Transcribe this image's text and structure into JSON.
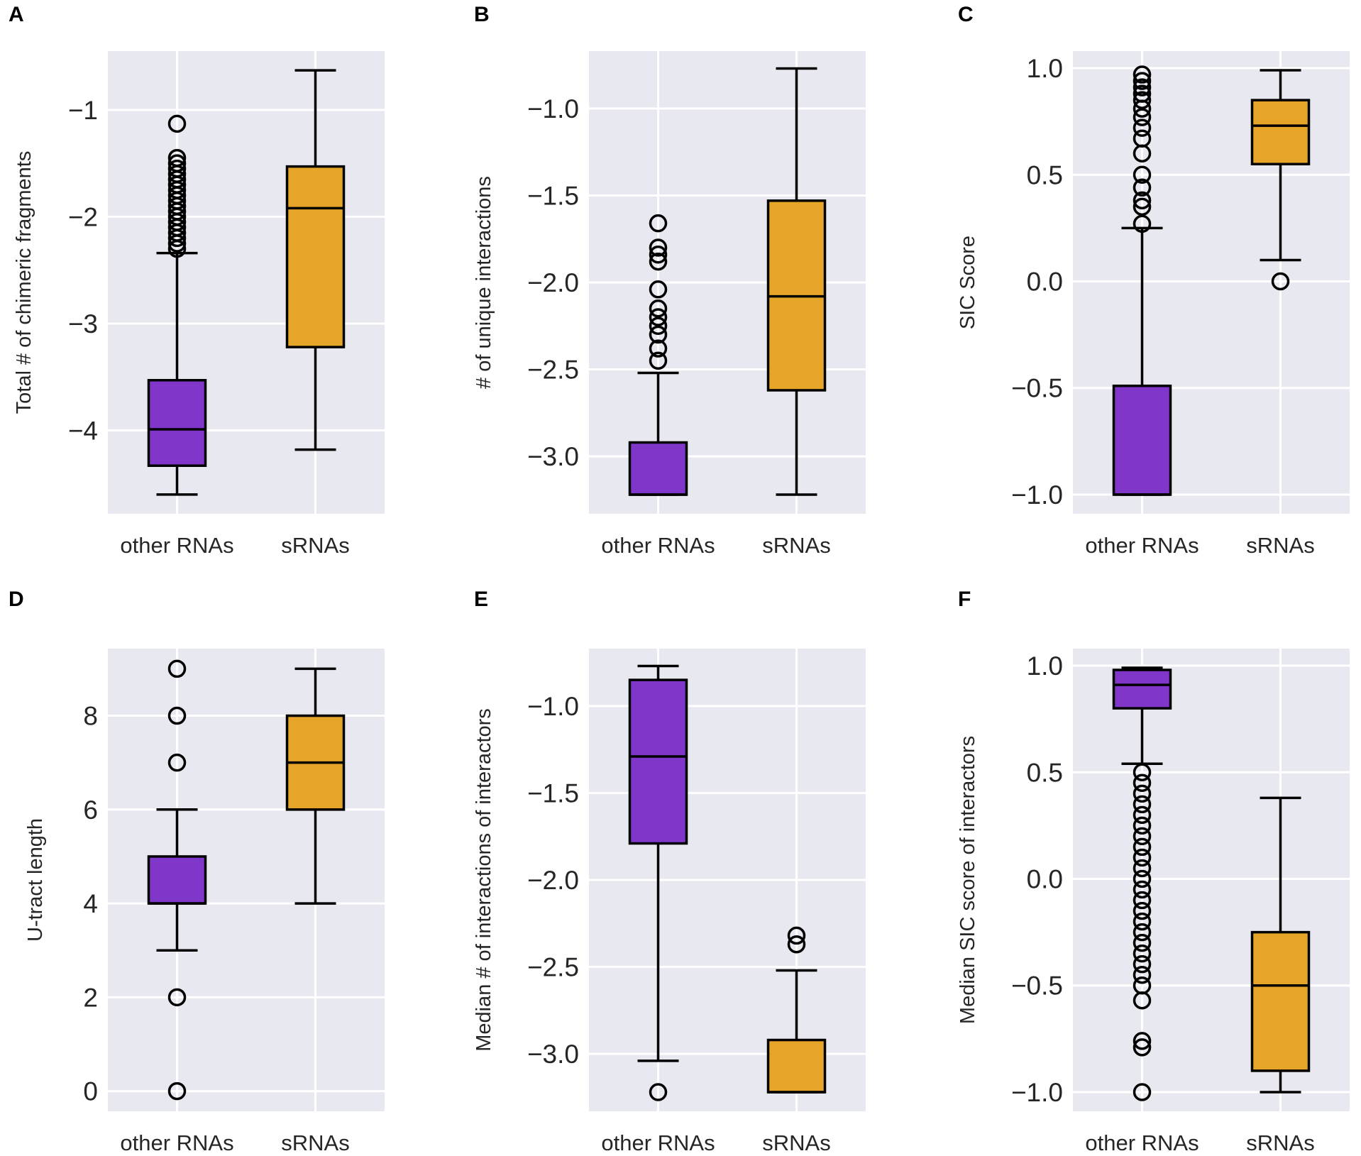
{
  "colors": {
    "other": "#7f36c9",
    "srna": "#e6a428",
    "background": "#e8e8f0"
  },
  "chart_data": [
    {
      "panel": "A",
      "type": "box",
      "ylabel": "Total # of chimeric fragments",
      "categories": [
        "other RNAs",
        "sRNAs"
      ],
      "ylim": [
        -4.78,
        -0.45
      ],
      "yticks": [
        -4,
        -3,
        -2,
        -1
      ],
      "ytick_labels": [
        "−4",
        "−3",
        "−2",
        "−1"
      ],
      "boxes": [
        {
          "q1": -4.33,
          "median": -3.99,
          "q3": -3.53,
          "whislo": -4.6,
          "whishi": -2.34,
          "fliers": [
            -2.3,
            -2.25,
            -2.2,
            -2.15,
            -2.1,
            -2.05,
            -2.0,
            -1.95,
            -1.9,
            -1.85,
            -1.8,
            -1.75,
            -1.7,
            -1.65,
            -1.6,
            -1.55,
            -1.5,
            -1.45,
            -1.13
          ]
        },
        {
          "q1": -3.22,
          "median": -1.92,
          "q3": -1.53,
          "whislo": -4.18,
          "whishi": -0.63,
          "fliers": []
        }
      ]
    },
    {
      "panel": "B",
      "type": "box",
      "ylabel": "# of unique interactions",
      "categories": [
        "other RNAs",
        "sRNAs"
      ],
      "ylim": [
        -3.33,
        -0.67
      ],
      "yticks": [
        -3.0,
        -2.5,
        -2.0,
        -1.5,
        -1.0
      ],
      "ytick_labels": [
        "−3.0",
        "−2.5",
        "−2.0",
        "−1.5",
        "−1.0"
      ],
      "boxes": [
        {
          "q1": -3.22,
          "median": -3.22,
          "q3": -2.92,
          "whislo": -3.22,
          "whishi": -2.52,
          "fliers": [
            -2.45,
            -2.38,
            -2.3,
            -2.25,
            -2.2,
            -2.15,
            -2.04,
            -1.88,
            -1.84,
            -1.8,
            -1.66
          ]
        },
        {
          "q1": -2.62,
          "median": -2.08,
          "q3": -1.53,
          "whislo": -3.22,
          "whishi": -0.77,
          "fliers": []
        }
      ]
    },
    {
      "panel": "C",
      "type": "box",
      "ylabel": "SIC Score",
      "categories": [
        "other RNAs",
        "sRNAs"
      ],
      "ylim": [
        -1.09,
        1.08
      ],
      "yticks": [
        -1.0,
        -0.5,
        0.0,
        0.5,
        1.0
      ],
      "ytick_labels": [
        "−1.0",
        "−0.5",
        "0.0",
        "0.5",
        "1.0"
      ],
      "boxes": [
        {
          "q1": -1.0,
          "median": -1.0,
          "q3": -0.49,
          "whislo": -1.0,
          "whishi": 0.25,
          "fliers": [
            0.27,
            0.35,
            0.38,
            0.44,
            0.5,
            0.6,
            0.67,
            0.72,
            0.77,
            0.81,
            0.85,
            0.88,
            0.91,
            0.94,
            0.97
          ]
        },
        {
          "q1": 0.55,
          "median": 0.73,
          "q3": 0.85,
          "whislo": 0.1,
          "whishi": 0.99,
          "fliers": [
            0.0
          ]
        }
      ]
    },
    {
      "panel": "D",
      "type": "box",
      "ylabel": "U-tract length",
      "categories": [
        "other RNAs",
        "sRNAs"
      ],
      "ylim": [
        -0.43,
        9.43
      ],
      "yticks": [
        0,
        2,
        4,
        6,
        8
      ],
      "ytick_labels": [
        "0",
        "2",
        "4",
        "6",
        "8"
      ],
      "boxes": [
        {
          "q1": 4,
          "median": 4,
          "q3": 5,
          "whislo": 3,
          "whishi": 6,
          "fliers": [
            0,
            2,
            7,
            8,
            9
          ]
        },
        {
          "q1": 6,
          "median": 7,
          "q3": 8,
          "whislo": 4,
          "whishi": 9,
          "fliers": []
        }
      ]
    },
    {
      "panel": "E",
      "type": "box",
      "ylabel": "Median # of interactions of interactors",
      "categories": [
        "other RNAs",
        "sRNAs"
      ],
      "ylim": [
        -3.33,
        -0.67
      ],
      "yticks": [
        -3.0,
        -2.5,
        -2.0,
        -1.5,
        -1.0
      ],
      "ytick_labels": [
        "−3.0",
        "−2.5",
        "−2.0",
        "−1.5",
        "−1.0"
      ],
      "boxes": [
        {
          "q1": -1.79,
          "median": -1.29,
          "q3": -0.85,
          "whislo": -3.04,
          "whishi": -0.77,
          "fliers": [
            -3.22
          ]
        },
        {
          "q1": -3.22,
          "median": -3.22,
          "q3": -2.92,
          "whislo": -3.22,
          "whishi": -2.52,
          "fliers": [
            -2.37,
            -2.32
          ]
        }
      ]
    },
    {
      "panel": "F",
      "type": "box",
      "ylabel": "Median SIC score of interactors",
      "categories": [
        "other RNAs",
        "sRNAs"
      ],
      "ylim": [
        -1.09,
        1.08
      ],
      "yticks": [
        -1.0,
        -0.5,
        0.0,
        0.5,
        1.0
      ],
      "ytick_labels": [
        "−1.0",
        "−0.5",
        "0.0",
        "0.5",
        "1.0"
      ],
      "boxes": [
        {
          "q1": 0.8,
          "median": 0.91,
          "q3": 0.98,
          "whislo": 0.54,
          "whishi": 0.99,
          "fliers": [
            -1.0,
            -0.79,
            -0.76,
            -0.57,
            -0.5,
            -0.45,
            -0.4,
            -0.35,
            -0.3,
            -0.25,
            -0.2,
            -0.15,
            -0.1,
            -0.05,
            0.0,
            0.05,
            0.1,
            0.15,
            0.2,
            0.25,
            0.3,
            0.35,
            0.4,
            0.45,
            0.5
          ]
        },
        {
          "q1": -0.9,
          "median": -0.5,
          "q3": -0.25,
          "whislo": -1.0,
          "whishi": 0.38,
          "fliers": []
        }
      ]
    }
  ]
}
